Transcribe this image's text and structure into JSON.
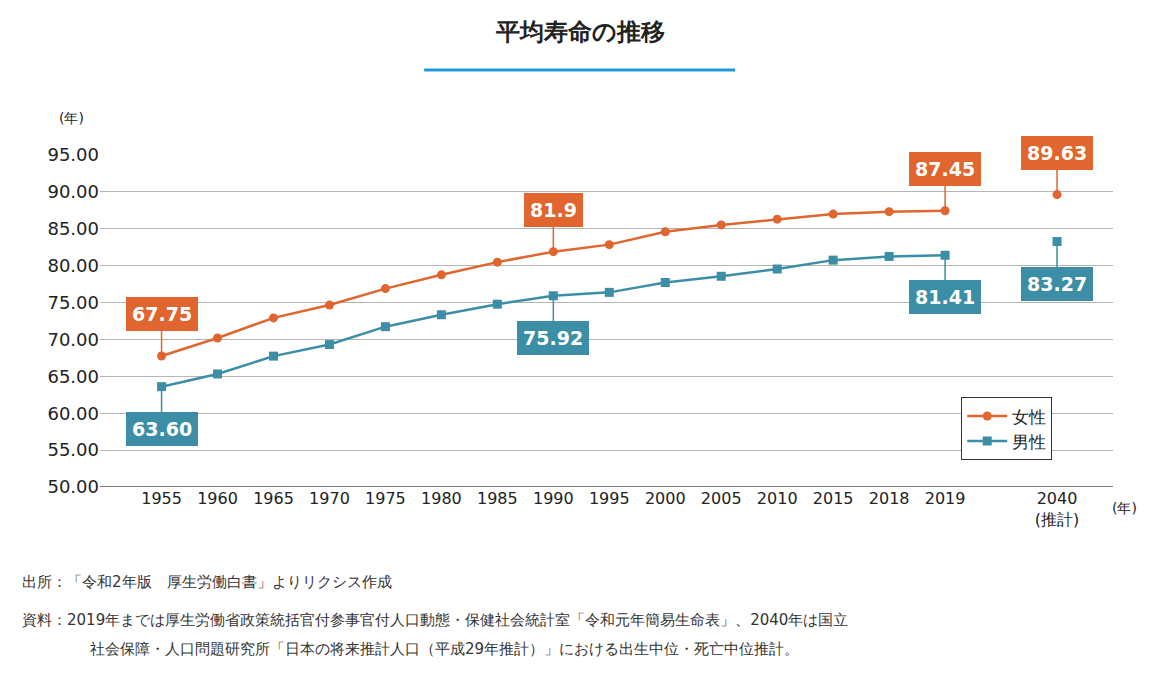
{
  "chart_data": {
    "type": "line",
    "title": "平均寿命の推移",
    "x_label": "(年)",
    "y_label": "(年)",
    "categories": [
      "1955",
      "1960",
      "1965",
      "1970",
      "1975",
      "1980",
      "1985",
      "1990",
      "1995",
      "2000",
      "2005",
      "2010",
      "2015",
      "2018",
      "2019",
      null,
      "2040 (推計)"
    ],
    "series": [
      {
        "name": "女性",
        "color": "#e0652e",
        "marker": "circle",
        "values": [
          67.75,
          70.19,
          72.92,
          74.66,
          76.89,
          78.76,
          80.48,
          81.9,
          82.85,
          84.6,
          85.52,
          86.3,
          86.99,
          87.32,
          87.45,
          null,
          89.63
        ],
        "value_labels": [
          "67.75",
          null,
          null,
          null,
          null,
          null,
          null,
          "81.9",
          null,
          null,
          null,
          null,
          null,
          null,
          "87.45",
          null,
          "89.63"
        ]
      },
      {
        "name": "男性",
        "color": "#3b8ea5",
        "marker": "square",
        "values": [
          63.6,
          65.32,
          67.74,
          69.31,
          71.73,
          73.35,
          74.78,
          75.92,
          76.38,
          77.72,
          78.56,
          79.55,
          80.75,
          81.25,
          81.41,
          null,
          83.27
        ],
        "value_labels": [
          "63.60",
          null,
          null,
          null,
          null,
          null,
          null,
          "75.92",
          null,
          null,
          null,
          null,
          null,
          null,
          "81.41",
          null,
          "83.27"
        ]
      }
    ],
    "ylim": [
      50,
      95
    ],
    "yticks": [
      {
        "value": 50,
        "label": "50.00"
      },
      {
        "value": 55,
        "label": "55.00"
      },
      {
        "value": 60,
        "label": "60.00"
      },
      {
        "value": 65,
        "label": "65.00"
      },
      {
        "value": 70,
        "label": "70.00"
      },
      {
        "value": 75,
        "label": "75.00"
      },
      {
        "value": 80,
        "label": "80.00"
      },
      {
        "value": 85,
        "label": "85.00"
      },
      {
        "value": 90,
        "label": "90.00"
      },
      {
        "value": 95,
        "label": "95.00"
      }
    ],
    "grid": true,
    "legend": "lower right",
    "notes": [
      "出所：「令和2年版　厚生労働白書」よりリクシス作成",
      "資料：2019年までは厚生労働省政策統括官付参事官付人口動態・保健社会統計室「令和元年簡易生命表」、2040年は国立",
      "社会保障・人口問題研究所「日本の将来推計人口（平成29年推計）」における出生中位・死亡中位推計。"
    ]
  }
}
